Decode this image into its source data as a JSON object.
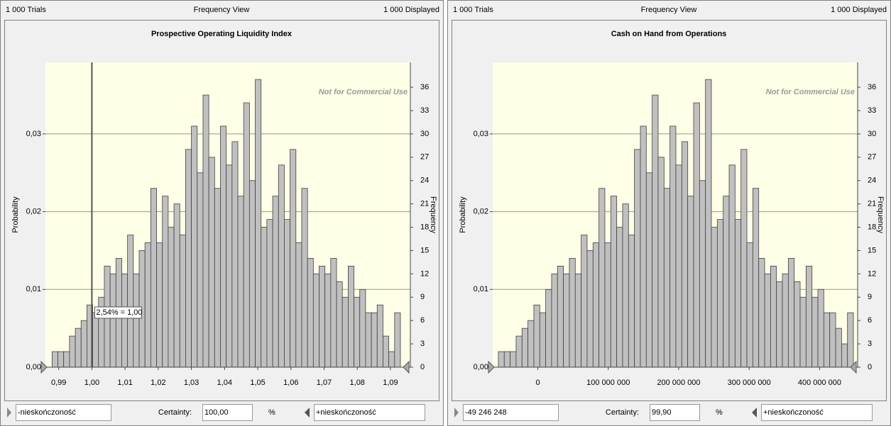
{
  "panels": [
    {
      "header": {
        "trials": "1 000 Trials",
        "view": "Frequency View",
        "displayed": "1 000 Displayed"
      },
      "chart_data": {
        "type": "histogram",
        "title": "Prospective Operating Liquidity Index",
        "y_label": "Frequency",
        "y2_label": "Probability",
        "watermark": "Not for Commercial Use",
        "bins": [
          0.988,
          0.98975,
          0.9915,
          0.99325,
          0.995,
          0.99675,
          0.9985,
          1.00025,
          1.002,
          1.00375,
          1.0055,
          1.00725,
          1.009,
          1.01075,
          1.0125,
          1.01425,
          1.016,
          1.01775,
          1.0195,
          1.02125,
          1.023,
          1.02475,
          1.0265,
          1.02825,
          1.03,
          1.03175,
          1.0335,
          1.03525,
          1.037,
          1.03875,
          1.0405,
          1.04225,
          1.044,
          1.04575,
          1.0475,
          1.04925,
          1.051,
          1.05275,
          1.0545,
          1.05625,
          1.058,
          1.05975,
          1.0615,
          1.06325,
          1.065,
          1.06675,
          1.0685,
          1.07025,
          1.072,
          1.07375,
          1.0755,
          1.07725,
          1.079,
          1.08075,
          1.0825,
          1.08425,
          1.086,
          1.08775,
          1.0895,
          1.09125,
          1.093
        ],
        "values": [
          2,
          2,
          2,
          4,
          5,
          6,
          8,
          7,
          9,
          13,
          12,
          14,
          12,
          17,
          12,
          15,
          16,
          23,
          16,
          22,
          18,
          21,
          17,
          28,
          31,
          25,
          35,
          27,
          23,
          31,
          26,
          29,
          22,
          34,
          24,
          37,
          18,
          19,
          22,
          26,
          19,
          28,
          16,
          23,
          14,
          12,
          13,
          12,
          14,
          11,
          9,
          13,
          9,
          10,
          7,
          7,
          8,
          4,
          2,
          7
        ],
        "color": "#c0c0c0",
        "xlim": [
          0.986,
          1.096
        ],
        "xticks": [
          {
            "value": 0.99,
            "label": "0,99"
          },
          {
            "value": 1.0,
            "label": "1,00"
          },
          {
            "value": 1.01,
            "label": "1,01"
          },
          {
            "value": 1.02,
            "label": "1,02"
          },
          {
            "value": 1.03,
            "label": "1,03"
          },
          {
            "value": 1.04,
            "label": "1,04"
          },
          {
            "value": 1.05,
            "label": "1,05"
          },
          {
            "value": 1.06,
            "label": "1,06"
          },
          {
            "value": 1.07,
            "label": "1,07"
          },
          {
            "value": 1.08,
            "label": "1,08"
          },
          {
            "value": 1.09,
            "label": "1,09"
          }
        ],
        "ylim": [
          0,
          39.2
        ],
        "yticks": [
          0,
          3,
          6,
          9,
          12,
          15,
          18,
          21,
          24,
          27,
          30,
          33,
          36
        ],
        "y2lim": [
          0,
          0.0392
        ],
        "y2ticks": [
          {
            "value": 0,
            "label": "0,00"
          },
          {
            "value": 0.01,
            "label": "0,01"
          },
          {
            "value": 0.02,
            "label": "0,02"
          },
          {
            "value": 0.03,
            "label": "0,03"
          }
        ],
        "grid": true,
        "marker": {
          "value": 1.0,
          "label": "2,54% = 1,00"
        }
      },
      "footer": {
        "lower": "-nieskończoność",
        "certainty_label": "Certainty:",
        "certainty": "100,00",
        "unit": "%",
        "upper": "+nieskończoność"
      }
    },
    {
      "header": {
        "trials": "1 000 Trials",
        "view": "Frequency View",
        "displayed": "1 000 Displayed"
      },
      "chart_data": {
        "type": "histogram",
        "title": "Cash on Hand from Operations",
        "y_label": "Frequency",
        "y2_label": "Probability",
        "watermark": "Not for Commercial Use",
        "bins": [
          -56000000,
          -47600000,
          -39200000,
          -30800000,
          -22400000,
          -14000000,
          -5600000,
          2800000,
          11200000,
          19600000,
          28000000,
          36400000,
          44800000,
          53200000,
          61600000,
          70000000,
          78400000,
          86800000,
          95200000,
          103600000,
          112000000,
          120400000,
          128800000,
          137200000,
          145600000,
          154000000,
          162400000,
          170800000,
          179200000,
          187600000,
          196000000,
          204400000,
          212800000,
          221200000,
          229600000,
          238000000,
          246400000,
          254800000,
          263200000,
          271600000,
          280000000,
          288400000,
          296800000,
          305200000,
          313600000,
          322000000,
          330400000,
          338800000,
          347200000,
          355600000,
          364000000,
          372400000,
          380800000,
          389200000,
          397600000,
          406000000,
          414400000,
          422800000,
          431200000,
          439600000,
          448000000
        ],
        "values": [
          2,
          2,
          2,
          4,
          5,
          6,
          8,
          7,
          10,
          12,
          13,
          12,
          14,
          12,
          17,
          15,
          16,
          23,
          16,
          22,
          18,
          21,
          17,
          28,
          31,
          25,
          35,
          27,
          23,
          31,
          26,
          29,
          22,
          34,
          24,
          37,
          18,
          19,
          22,
          26,
          19,
          28,
          16,
          23,
          14,
          12,
          13,
          11,
          12,
          14,
          11,
          9,
          13,
          9,
          10,
          7,
          7,
          5,
          3,
          7
        ],
        "color": "#c0c0c0",
        "xlim": [
          -64000000,
          454000000
        ],
        "xticks": [
          0,
          {
            "value": 100000000,
            "label": "100 000 000"
          },
          {
            "value": 200000000,
            "label": "200 000 000"
          },
          {
            "value": 300000000,
            "label": "300 000 000"
          },
          {
            "value": 400000000,
            "label": "400 000 000"
          }
        ],
        "ylim": [
          0,
          39.2
        ],
        "yticks": [
          0,
          3,
          6,
          9,
          12,
          15,
          18,
          21,
          24,
          27,
          30,
          33,
          36
        ],
        "y2lim": [
          0,
          0.0392
        ],
        "y2ticks": [
          {
            "value": 0,
            "label": "0,00"
          },
          {
            "value": 0.01,
            "label": "0,01"
          },
          {
            "value": 0.02,
            "label": "0,02"
          },
          {
            "value": 0.03,
            "label": "0,03"
          }
        ],
        "grid": true
      },
      "footer": {
        "lower": "-49 246 248",
        "certainty_label": "Certainty:",
        "certainty": "99,90",
        "unit": "%",
        "upper": "+nieskończoność"
      }
    }
  ]
}
